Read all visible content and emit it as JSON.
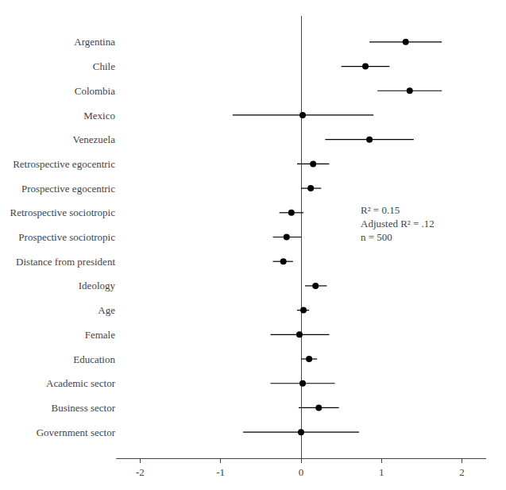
{
  "chart_data": {
    "type": "coefficient",
    "categories": [
      "Argentina",
      "Chile",
      "Colombia",
      "Mexico",
      "Venezuela",
      "Retrospective egocentric",
      "Prospective egocentric",
      "Retrospective sociotropic",
      "Prospective sociotropic",
      "Distance from president",
      "Ideology",
      "Age",
      "Female",
      "Education",
      "Academic sector",
      "Business sector",
      "Government sector"
    ],
    "values": [
      1.3,
      0.8,
      1.35,
      0.02,
      0.85,
      0.15,
      0.12,
      -0.12,
      -0.18,
      -0.22,
      0.18,
      0.03,
      -0.02,
      0.1,
      0.02,
      0.22,
      0.0
    ],
    "ci_low": [
      0.85,
      0.5,
      0.95,
      -0.85,
      0.3,
      -0.05,
      0.0,
      -0.27,
      -0.35,
      -0.35,
      0.05,
      -0.05,
      -0.38,
      0.0,
      -0.38,
      -0.03,
      -0.72
    ],
    "ci_high": [
      1.75,
      1.1,
      1.75,
      0.9,
      1.4,
      0.35,
      0.25,
      0.03,
      0.0,
      -0.1,
      0.32,
      0.1,
      0.35,
      0.2,
      0.42,
      0.47,
      0.72
    ],
    "color": "#000000",
    "xlim": [
      -2.3,
      2.3
    ],
    "xticks": [
      -2,
      -1,
      0,
      1,
      2
    ],
    "grid": false,
    "annotations": [
      "R² = 0.15",
      "Adjusted R² = .12",
      "n = 500"
    ]
  }
}
